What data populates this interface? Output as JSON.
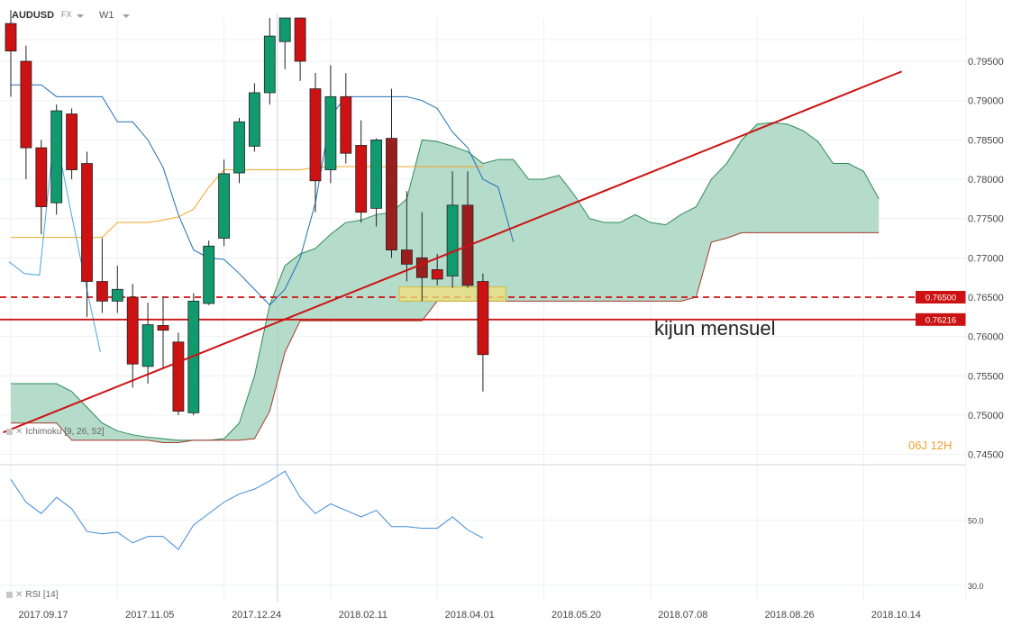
{
  "header": {
    "symbol": "AUDUSD",
    "market": "FX",
    "timeframe": "W1"
  },
  "countdown": "06J 12H",
  "annotation": "kijun mensuel",
  "indicators": {
    "ichimoku": {
      "name": "Ichimoku",
      "params": "[9, 26, 52]"
    },
    "rsi": {
      "name": "RSI",
      "params": "[14]"
    }
  },
  "colors": {
    "up": "#109a6e",
    "down": "#cc1212",
    "down_dark": "#9b1e1e",
    "cloud": "#a8d5c2",
    "cloud_edge": "#2e8b57",
    "kijun": "#1f6fb5",
    "tenkan": "#f5a623",
    "chikou": "#4aa3e0",
    "trend": "#cc1212",
    "rsi": "#3d8ad9",
    "grid": "#eef0f3",
    "axis_text": "#444444",
    "price_tag_bg": "#cc1212",
    "zone": "#f2e27a"
  },
  "chart_data": [
    {
      "type": "candlestick",
      "title": "AUDUSD W1",
      "x_start": "2017-07-30",
      "x_step_days": 7,
      "x_labels": [
        "2017.09.17",
        "2017.11.05",
        "2017.12.24",
        "2018.02.11",
        "2018.04.01",
        "2018.05.20",
        "2018.07.08",
        "2018.08.26",
        "2018.10.14"
      ],
      "y_ticks": [
        0.745,
        0.75,
        0.755,
        0.76,
        0.765,
        0.77,
        0.775,
        0.78,
        0.785,
        0.79,
        0.795
      ],
      "y_tick_labels": [
        "0.74500",
        "0.75000",
        "0.75500",
        "0.76000",
        "0.76500",
        "0.77000",
        "0.77500",
        "0.78000",
        "0.78500",
        "0.79000",
        "0.79500"
      ],
      "ylim": [
        0.7437,
        0.8005
      ],
      "candles": [
        {
          "o": 0.7998,
          "h": 0.8015,
          "l": 0.7905,
          "c": 0.7963
        },
        {
          "o": 0.795,
          "h": 0.797,
          "l": 0.78,
          "c": 0.784
        },
        {
          "o": 0.784,
          "h": 0.785,
          "l": 0.773,
          "c": 0.7765
        },
        {
          "o": 0.777,
          "h": 0.7895,
          "l": 0.7755,
          "c": 0.7887
        },
        {
          "o": 0.7883,
          "h": 0.789,
          "l": 0.78,
          "c": 0.7812
        },
        {
          "o": 0.782,
          "h": 0.7835,
          "l": 0.7625,
          "c": 0.767
        },
        {
          "o": 0.767,
          "h": 0.7725,
          "l": 0.763,
          "c": 0.7645
        },
        {
          "o": 0.7645,
          "h": 0.769,
          "l": 0.763,
          "c": 0.766
        },
        {
          "o": 0.765,
          "h": 0.7667,
          "l": 0.7535,
          "c": 0.7565
        },
        {
          "o": 0.7562,
          "h": 0.7643,
          "l": 0.754,
          "c": 0.7615
        },
        {
          "o": 0.7614,
          "h": 0.765,
          "l": 0.756,
          "c": 0.7608
        },
        {
          "o": 0.7593,
          "h": 0.7605,
          "l": 0.75,
          "c": 0.7505
        },
        {
          "o": 0.7503,
          "h": 0.7655,
          "l": 0.75,
          "c": 0.7645
        },
        {
          "o": 0.7642,
          "h": 0.7722,
          "l": 0.764,
          "c": 0.7715
        },
        {
          "o": 0.7725,
          "h": 0.7825,
          "l": 0.7715,
          "c": 0.7807
        },
        {
          "o": 0.7808,
          "h": 0.7878,
          "l": 0.7795,
          "c": 0.7873
        },
        {
          "o": 0.7842,
          "h": 0.7922,
          "l": 0.7835,
          "c": 0.791
        },
        {
          "o": 0.791,
          "h": 0.8005,
          "l": 0.7895,
          "c": 0.7982
        },
        {
          "o": 0.7975,
          "h": 0.8005,
          "l": 0.794,
          "c": 0.8005
        },
        {
          "o": 0.8005,
          "h": 0.8005,
          "l": 0.7925,
          "c": 0.795
        },
        {
          "o": 0.7915,
          "h": 0.7935,
          "l": 0.7758,
          "c": 0.7798
        },
        {
          "o": 0.7812,
          "h": 0.7945,
          "l": 0.7795,
          "c": 0.7905
        },
        {
          "o": 0.7905,
          "h": 0.7935,
          "l": 0.782,
          "c": 0.7833
        },
        {
          "o": 0.7843,
          "h": 0.7875,
          "l": 0.7745,
          "c": 0.7758
        },
        {
          "o": 0.7763,
          "h": 0.7852,
          "l": 0.774,
          "c": 0.785
        },
        {
          "o": 0.7852,
          "h": 0.7915,
          "l": 0.77,
          "c": 0.771
        },
        {
          "o": 0.771,
          "h": 0.7785,
          "l": 0.767,
          "c": 0.7692
        },
        {
          "o": 0.77,
          "h": 0.7758,
          "l": 0.7645,
          "c": 0.7675
        },
        {
          "o": 0.7685,
          "h": 0.7705,
          "l": 0.7665,
          "c": 0.7673
        },
        {
          "o": 0.7677,
          "h": 0.781,
          "l": 0.7662,
          "c": 0.7767
        },
        {
          "o": 0.7767,
          "h": 0.781,
          "l": 0.7662,
          "c": 0.7665
        },
        {
          "o": 0.767,
          "h": 0.768,
          "l": 0.753,
          "c": 0.7577
        }
      ],
      "ichimoku": {
        "tenkan": [
          null,
          null,
          null,
          null,
          null,
          null,
          null,
          null,
          null,
          null,
          null,
          null,
          null,
          null,
          null,
          null,
          null,
          null,
          0.7726,
          0.7726,
          0.7726,
          0.7726,
          0.7726,
          0.7726,
          0.7726,
          0.7745,
          0.7745,
          0.7745,
          0.7748,
          0.7752,
          0.7762,
          0.779,
          0.7812,
          0.7812,
          0.7812,
          0.7812,
          0.7812,
          0.7812,
          0.7815,
          0.7816,
          0.7816,
          0.7816,
          0.7816,
          0.7816,
          0.7816,
          0.7816,
          0.7816,
          0.7816,
          0.7816,
          0.7816
        ],
        "kijun": [
          null,
          null,
          null,
          null,
          null,
          null,
          null,
          null,
          null,
          null,
          null,
          null,
          null,
          null,
          0.792,
          0.792,
          0.792,
          0.7905,
          0.7905,
          0.7905,
          0.7905,
          0.7873,
          0.7873,
          0.785,
          0.7815,
          0.7755,
          0.771,
          0.77,
          0.7698,
          0.768,
          0.766,
          0.764,
          0.766,
          0.77,
          0.777,
          0.788,
          0.7905,
          0.7905,
          0.7905,
          0.7905,
          0.7905,
          0.79,
          0.789,
          0.786,
          0.784,
          0.78,
          0.779,
          0.772
        ],
        "chikou": [
          0.7695,
          0.768,
          0.7678,
          0.7863,
          0.7765,
          0.767,
          0.758
        ],
        "span_a": [
          0.754,
          0.754,
          0.754,
          0.754,
          0.753,
          0.751,
          0.749,
          0.748,
          0.7475,
          0.7472,
          0.747,
          0.7468,
          0.7468,
          0.7468,
          0.747,
          0.749,
          0.755,
          0.764,
          0.769,
          0.7705,
          0.7712,
          0.773,
          0.7745,
          0.7748,
          0.7755,
          0.7758,
          0.7775,
          0.785,
          0.7848,
          0.7842,
          0.7835,
          0.782,
          0.7825,
          0.7825,
          0.78,
          0.78,
          0.7805,
          0.778,
          0.775,
          0.7745,
          0.7745,
          0.7755,
          0.7745,
          0.7742,
          0.7755,
          0.7765,
          0.78,
          0.782,
          0.785,
          0.787,
          0.7872,
          0.787,
          0.7862,
          0.7848,
          0.782,
          0.782,
          0.781,
          0.7775
        ],
        "span_b": [
          0.749,
          0.749,
          0.749,
          0.749,
          0.7468,
          0.7468,
          0.7468,
          0.7468,
          0.7468,
          0.7468,
          0.7465,
          0.7465,
          0.7468,
          0.7468,
          0.7468,
          0.7468,
          0.747,
          0.7505,
          0.758,
          0.762,
          0.762,
          0.762,
          0.762,
          0.762,
          0.762,
          0.762,
          0.762,
          0.762,
          0.7645,
          0.7645,
          0.7645,
          0.7645,
          0.7645,
          0.7645,
          0.7645,
          0.7645,
          0.7645,
          0.7645,
          0.7645,
          0.7645,
          0.7645,
          0.7645,
          0.7645,
          0.7645,
          0.7645,
          0.765,
          0.772,
          0.7725,
          0.7732,
          0.7732,
          0.7732,
          0.7732,
          0.7732,
          0.7732,
          0.7732,
          0.7732,
          0.7732,
          0.7732
        ]
      },
      "horizontal_lines": [
        {
          "value": 0.765,
          "label": "0.76500",
          "style": "dashed"
        },
        {
          "value": 0.76216,
          "label": "0.76216",
          "style": "solid"
        }
      ],
      "trendline": {
        "from": {
          "week": -0.5,
          "value": 0.7478
        },
        "to": {
          "week": 58.5,
          "value": 0.7937
        }
      },
      "zone": {
        "week_from": 25.5,
        "week_to": 32.5,
        "from": 0.7645,
        "to": 0.7663
      },
      "crosshair_week": 17.5
    },
    {
      "type": "line",
      "title": "RSI [14]",
      "y_ticks": [
        50.0,
        30.0
      ],
      "y_tick_labels": [
        "50.0",
        "30.0"
      ],
      "ylim": [
        25,
        67
      ],
      "values": [
        62.5,
        55.5,
        52,
        57,
        53.5,
        46.5,
        45.8,
        46.3,
        43,
        45,
        45,
        41,
        48.5,
        52,
        55.5,
        58,
        59.5,
        62,
        65,
        57,
        52,
        55,
        53,
        51,
        53,
        48,
        48,
        47.5,
        47.5,
        51,
        47,
        44.5
      ]
    }
  ]
}
